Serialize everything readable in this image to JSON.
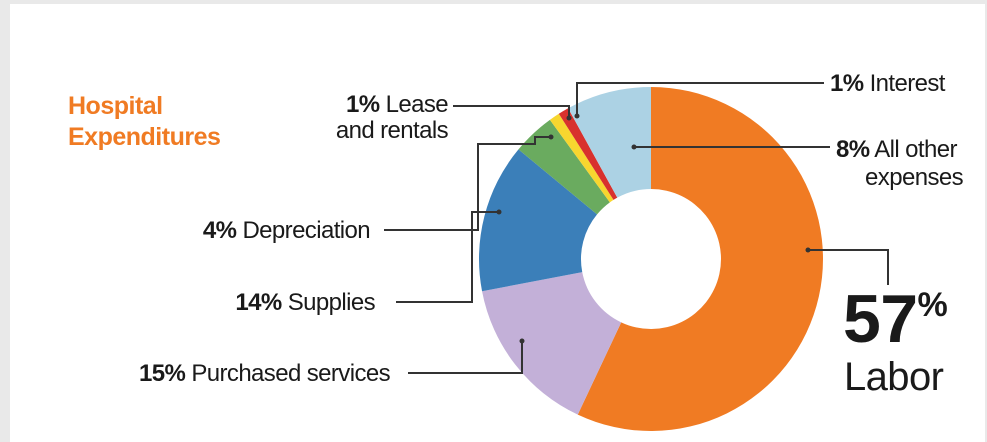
{
  "chart_data": {
    "type": "pie",
    "style": "donut",
    "title_lines": [
      "Hospital",
      "Expenditures"
    ],
    "slices": [
      {
        "label": "Labor",
        "value": 57,
        "color": "#f07b23",
        "pct_text": "57",
        "pct_sign": "%",
        "name_lines": [
          "Labor"
        ]
      },
      {
        "label": "Purchased services",
        "value": 15,
        "color": "#c3b0d8",
        "pct_text": "15%",
        "name_lines": [
          "Purchased services"
        ]
      },
      {
        "label": "Supplies",
        "value": 14,
        "color": "#3b7fb9",
        "pct_text": "14%",
        "name_lines": [
          "Supplies"
        ]
      },
      {
        "label": "Depreciation",
        "value": 4,
        "color": "#6aab5f",
        "pct_text": "4%",
        "name_lines": [
          "Depreciation"
        ]
      },
      {
        "label": "Lease and rentals",
        "value": 1,
        "color": "#f7d62f",
        "pct_text": "1%",
        "name_lines": [
          "Lease",
          "and rentals"
        ]
      },
      {
        "label": "Interest",
        "value": 1,
        "color": "#d8312d",
        "pct_text": "1%",
        "name_lines": [
          "Interest"
        ]
      },
      {
        "label": "All other expenses",
        "value": 8,
        "color": "#acd2e4",
        "pct_text": "8%",
        "name_lines": [
          "All other",
          "expenses"
        ]
      }
    ]
  },
  "colors": {
    "title": "#f07b23",
    "leader_line": "#333333",
    "text": "#1a1a1a"
  }
}
